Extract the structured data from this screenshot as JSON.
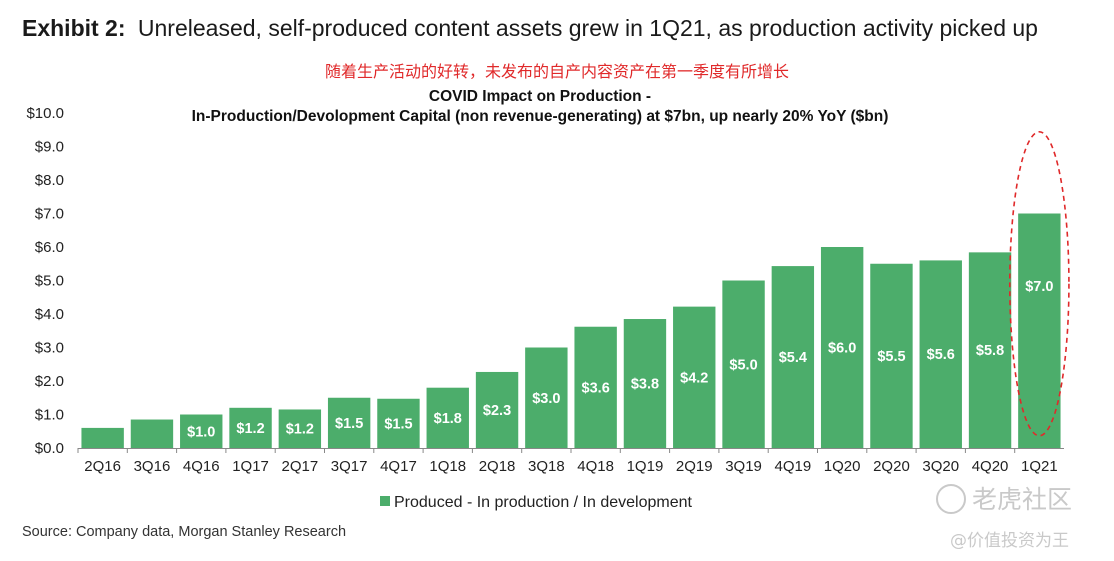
{
  "exhibit": {
    "number": "Exhibit 2:",
    "text": "Unreleased, self-produced content assets grew in 1Q21, as production activity picked up"
  },
  "subtitle_zh": "随着生产活动的好转，未发布的自产内容资产在第一季度有所增长",
  "source": "Source: Company data, Morgan Stanley Research",
  "watermark": {
    "logo_text": "老虎社区",
    "handle": "@价值投资为王"
  },
  "colors": {
    "bar": "#4cad6b",
    "highlight": "#e0292a",
    "subtitle": "#e0292a"
  },
  "chart_data": {
    "type": "bar",
    "title_line1": "COVID Impact on Production -",
    "title_line2": "In-Production/Devolopment Capital (non revenue-generating) at $7bn, up nearly 20% YoY ($bn)",
    "categories": [
      "2Q16",
      "3Q16",
      "4Q16",
      "1Q17",
      "2Q17",
      "3Q17",
      "4Q17",
      "1Q18",
      "2Q18",
      "3Q18",
      "4Q18",
      "1Q19",
      "2Q19",
      "3Q19",
      "4Q19",
      "1Q20",
      "2Q20",
      "3Q20",
      "4Q20",
      "1Q21"
    ],
    "series": [
      {
        "name": "Produced - In production / In development",
        "values": [
          0.6,
          0.85,
          1.0,
          1.2,
          1.15,
          1.5,
          1.47,
          1.8,
          2.27,
          3.0,
          3.62,
          3.85,
          4.22,
          5.0,
          5.43,
          6.0,
          5.5,
          5.6,
          5.84,
          7.0
        ],
        "labels": [
          "",
          "",
          "$1.0",
          "$1.2",
          "$1.2",
          "$1.5",
          "$1.5",
          "$1.8",
          "$2.3",
          "$3.0",
          "$3.6",
          "$3.8",
          "$4.2",
          "$5.0",
          "$5.4",
          "$6.0",
          "$5.5",
          "$5.6",
          "$5.8",
          "$7.0"
        ]
      }
    ],
    "ylim": [
      0,
      10
    ],
    "yticks": [
      "$0.0",
      "$1.0",
      "$2.0",
      "$3.0",
      "$4.0",
      "$5.0",
      "$6.0",
      "$7.0",
      "$8.0",
      "$9.0",
      "$10.0"
    ],
    "legend_position": "bottom-center",
    "grid": false,
    "highlighted_category": "1Q21"
  }
}
